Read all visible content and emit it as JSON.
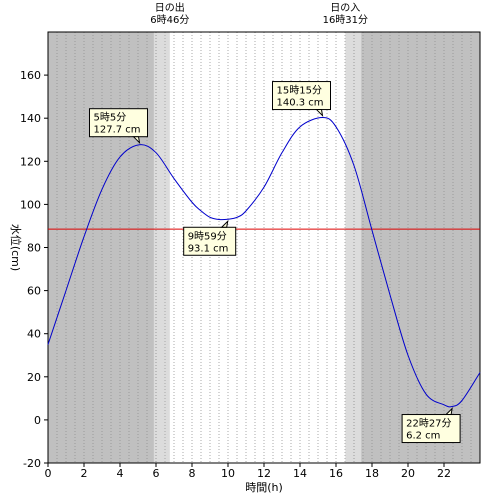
{
  "chart_data": {
    "type": "line",
    "xlabel": "時間(h)",
    "ylabel": "水位(cm)",
    "xlim": [
      0,
      24
    ],
    "ylim": [
      -20,
      180
    ],
    "x_ticks": [
      0,
      2,
      4,
      6,
      8,
      10,
      12,
      14,
      16,
      18,
      20,
      22
    ],
    "y_ticks": [
      -20,
      0,
      20,
      40,
      60,
      80,
      100,
      120,
      140,
      160
    ],
    "grid": "vertical dotted every 0.5h",
    "series": [
      {
        "color": "#0000cc",
        "x": [
          0,
          1,
          2,
          3,
          4,
          5.083,
          6,
          7,
          8,
          8.5,
          9,
          9.5,
          9.983,
          10.5,
          11,
          12,
          13,
          14,
          15.25,
          16,
          17,
          18,
          19,
          20,
          21,
          22,
          22.45,
          23,
          24
        ],
        "y": [
          35,
          60,
          85,
          107,
          122,
          127.7,
          124,
          112,
          101,
          97,
          94,
          93,
          93.1,
          94,
          97,
          108,
          124,
          136,
          140.3,
          136,
          118,
          88,
          58,
          30,
          12,
          7,
          6.2,
          9,
          22
        ]
      }
    ],
    "reference_line": {
      "y": 88.5,
      "color": "#dd0000"
    },
    "daylight": {
      "color_night": "#c0c0c0",
      "color_twilight": "#dcdcdc",
      "color_day": "#ffffff"
    },
    "sunrise": {
      "x": 6.767,
      "label_title": "日の出",
      "label_time": "6時46分"
    },
    "sunset": {
      "x": 16.517,
      "label_title": "日の入",
      "label_time": "16時31分"
    },
    "annotations": [
      {
        "x": 5.083,
        "y": 127.7,
        "time": "5時5分",
        "value": "127.7 cm",
        "position": "above"
      },
      {
        "x": 9.983,
        "y": 93.1,
        "time": "9時59分",
        "value": "93.1 cm",
        "position": "below"
      },
      {
        "x": 15.25,
        "y": 140.3,
        "time": "15時15分",
        "value": "140.3 cm",
        "position": "above"
      },
      {
        "x": 22.45,
        "y": 6.2,
        "time": "22時27分",
        "value": "6.2 cm",
        "position": "below"
      }
    ]
  }
}
